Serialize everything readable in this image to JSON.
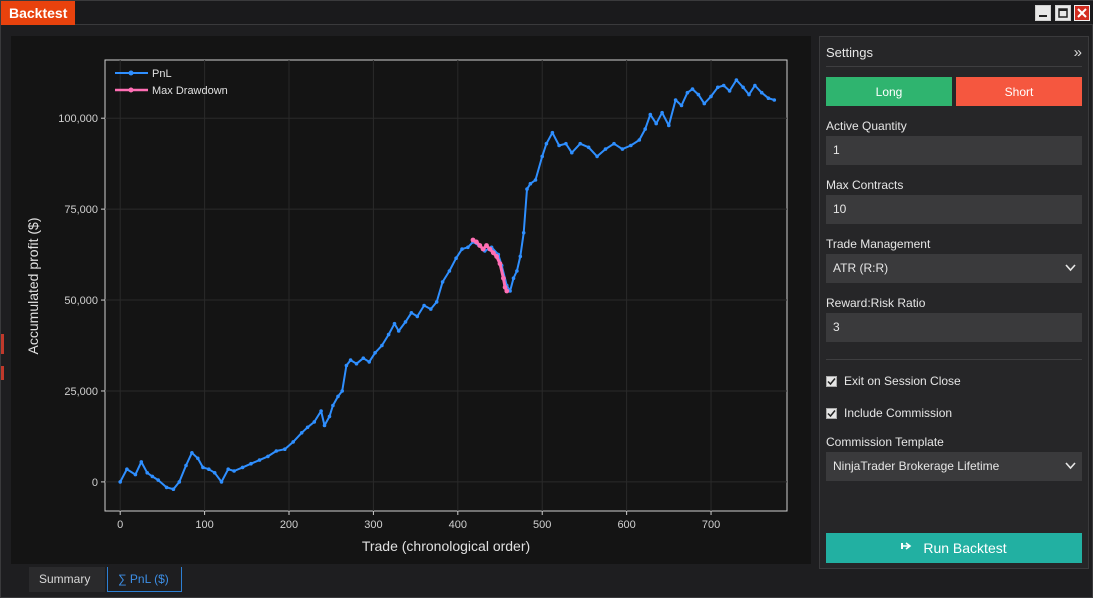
{
  "window": {
    "title": "Backtest"
  },
  "chart_data": {
    "type": "line",
    "title": "",
    "xlabel": "Trade (chronological order)",
    "ylabel": "Accumulated profit ($)",
    "xlim": [
      -18,
      790
    ],
    "ylim": [
      -8000,
      116000
    ],
    "x_ticks": [
      0,
      100,
      200,
      300,
      400,
      500,
      600,
      700
    ],
    "y_ticks": [
      0,
      25000,
      50000,
      75000,
      100000
    ],
    "x_tick_labels": [
      "0",
      "100",
      "200",
      "300",
      "400",
      "500",
      "600",
      "700"
    ],
    "y_tick_labels": [
      "0",
      "25,000",
      "50,000",
      "75,000",
      "100,000"
    ],
    "grid": true,
    "legend_position": "top-left",
    "series": [
      {
        "name": "PnL",
        "color": "#2f8fff",
        "x": [
          0,
          8,
          18,
          25,
          32,
          38,
          45,
          55,
          63,
          70,
          78,
          85,
          92,
          98,
          105,
          112,
          120,
          128,
          135,
          145,
          155,
          165,
          175,
          185,
          195,
          205,
          215,
          222,
          230,
          238,
          242,
          248,
          252,
          258,
          263,
          268,
          273,
          280,
          288,
          295,
          302,
          310,
          318,
          325,
          330,
          338,
          345,
          352,
          360,
          368,
          375,
          382,
          390,
          398,
          405,
          412,
          418,
          425,
          432,
          440,
          448,
          452,
          458,
          462,
          466,
          470,
          474,
          478,
          482,
          486,
          492,
          500,
          505,
          512,
          520,
          528,
          535,
          545,
          555,
          565,
          575,
          585,
          595,
          605,
          615,
          622,
          628,
          635,
          642,
          650,
          658,
          665,
          672,
          678,
          685,
          692,
          700,
          708,
          715,
          722,
          730,
          738,
          745,
          752,
          760,
          768,
          775
        ],
        "y": [
          0,
          3500,
          2000,
          5500,
          2500,
          1500,
          500,
          -1500,
          -2000,
          0,
          4500,
          8000,
          6500,
          4000,
          3500,
          2500,
          0,
          3500,
          3000,
          4000,
          5000,
          6000,
          7000,
          8500,
          9000,
          11000,
          13500,
          15000,
          16500,
          19500,
          15500,
          18000,
          21000,
          23500,
          25000,
          32000,
          33500,
          32500,
          34000,
          33000,
          35500,
          37500,
          40500,
          43500,
          41500,
          44000,
          46500,
          45500,
          48500,
          47500,
          49500,
          55000,
          58000,
          61500,
          64000,
          64500,
          66000,
          65000,
          63500,
          64500,
          62500,
          59500,
          54000,
          52500,
          56000,
          58000,
          62000,
          68500,
          80500,
          82000,
          83000,
          89500,
          93000,
          96000,
          92500,
          93000,
          90500,
          93000,
          92000,
          89500,
          91500,
          93000,
          91500,
          92500,
          94000,
          97000,
          101000,
          98500,
          101500,
          98000,
          105000,
          103500,
          107000,
          108000,
          106500,
          104000,
          106000,
          108500,
          109000,
          107500,
          110500,
          108500,
          106500,
          109000,
          107000,
          105500,
          105000
        ]
      },
      {
        "name": "Max Drawdown",
        "color": "#ff6fb4",
        "x": [
          418,
          422,
          426,
          430,
          434,
          438,
          442,
          446,
          450,
          454,
          456,
          458
        ],
        "y": [
          66500,
          66000,
          65000,
          64000,
          65000,
          64000,
          63000,
          62000,
          60000,
          56000,
          53500,
          52500
        ]
      }
    ]
  },
  "settings": {
    "title": "Settings",
    "collapse_icon": "double-chevron-right-icon",
    "long_label": "Long",
    "short_label": "Short",
    "long_color": "#2fb46f",
    "short_color": "#f5573f",
    "active_quantity_label": "Active Quantity",
    "active_quantity_value": "1",
    "max_contracts_label": "Max Contracts",
    "max_contracts_value": "10",
    "trade_management_label": "Trade Management",
    "trade_management_value": "ATR (R:R)",
    "reward_risk_label": "Reward:Risk Ratio",
    "reward_risk_value": "3",
    "exit_on_session_close_label": "Exit on Session Close",
    "exit_on_session_close_checked": true,
    "include_commission_label": "Include Commission",
    "include_commission_checked": true,
    "commission_template_label": "Commission Template",
    "commission_template_value": "NinjaTrader Brokerage Lifetime",
    "run_label": "Run Backtest",
    "run_color": "#22b0a2"
  },
  "tabs": {
    "summary_label": "Summary",
    "pnl_label": "∑ PnL ($)"
  }
}
